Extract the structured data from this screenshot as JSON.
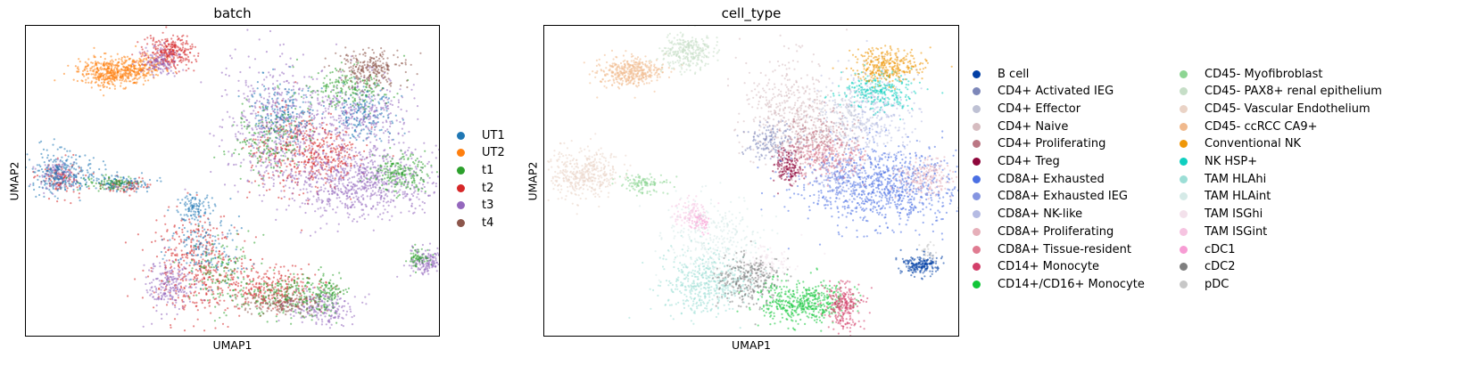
{
  "chart_data": [
    {
      "type": "scatter",
      "title": "batch",
      "xlabel": "UMAP1",
      "ylabel": "UMAP2",
      "grid": false,
      "legend_position": "right",
      "series": [
        {
          "name": "UT1",
          "color": "#1f77b4"
        },
        {
          "name": "UT2",
          "color": "#ff7f0e"
        },
        {
          "name": "t1",
          "color": "#2ca02c"
        },
        {
          "name": "t2",
          "color": "#d62728"
        },
        {
          "name": "t3",
          "color": "#9467bd"
        },
        {
          "name": "t4",
          "color": "#8c564b"
        }
      ]
    },
    {
      "type": "scatter",
      "title": "cell_type",
      "xlabel": "UMAP1",
      "ylabel": "UMAP2",
      "grid": false,
      "legend_position": "right",
      "series": [
        {
          "name": "B cell",
          "color": "#023fa5"
        },
        {
          "name": "CD4+ Activated IEG",
          "color": "#7d87b9"
        },
        {
          "name": "CD4+ Effector",
          "color": "#bec1d4"
        },
        {
          "name": "CD4+ Naive",
          "color": "#d6bcc0"
        },
        {
          "name": "CD4+ Proliferating",
          "color": "#bb7784"
        },
        {
          "name": "CD4+ Treg",
          "color": "#8e063b"
        },
        {
          "name": "CD8A+ Exhausted",
          "color": "#4a6fe3"
        },
        {
          "name": "CD8A+ Exhausted IEG",
          "color": "#8595e1"
        },
        {
          "name": "CD8A+ NK-like",
          "color": "#b5bbe3"
        },
        {
          "name": "CD8A+ Proliferating",
          "color": "#e6afb9"
        },
        {
          "name": "CD8A+ Tissue-resident",
          "color": "#e07b91"
        },
        {
          "name": "CD14+ Monocyte",
          "color": "#d33f6a"
        },
        {
          "name": "CD14+/CD16+ Monocyte",
          "color": "#11c638"
        },
        {
          "name": "CD45- Myofibroblast",
          "color": "#8dd593"
        },
        {
          "name": "CD45- PAX8+ renal epithelium",
          "color": "#c6dec7"
        },
        {
          "name": "CD45- Vascular Endothelium",
          "color": "#ead3c6"
        },
        {
          "name": "CD45- ccRCC CA9+",
          "color": "#f0b98d"
        },
        {
          "name": "Conventional NK",
          "color": "#ef9708"
        },
        {
          "name": "NK HSP+",
          "color": "#0fcfc0"
        },
        {
          "name": "TAM HLAhi",
          "color": "#9cded6"
        },
        {
          "name": "TAM HLAint",
          "color": "#d5eae7"
        },
        {
          "name": "TAM ISGhi",
          "color": "#f3e1eb"
        },
        {
          "name": "TAM ISGint",
          "color": "#f6c4e1"
        },
        {
          "name": "cDC1",
          "color": "#f79cd4"
        },
        {
          "name": "cDC2",
          "color": "#7f7f7f"
        },
        {
          "name": "pDC",
          "color": "#c7c7c7"
        }
      ]
    }
  ]
}
